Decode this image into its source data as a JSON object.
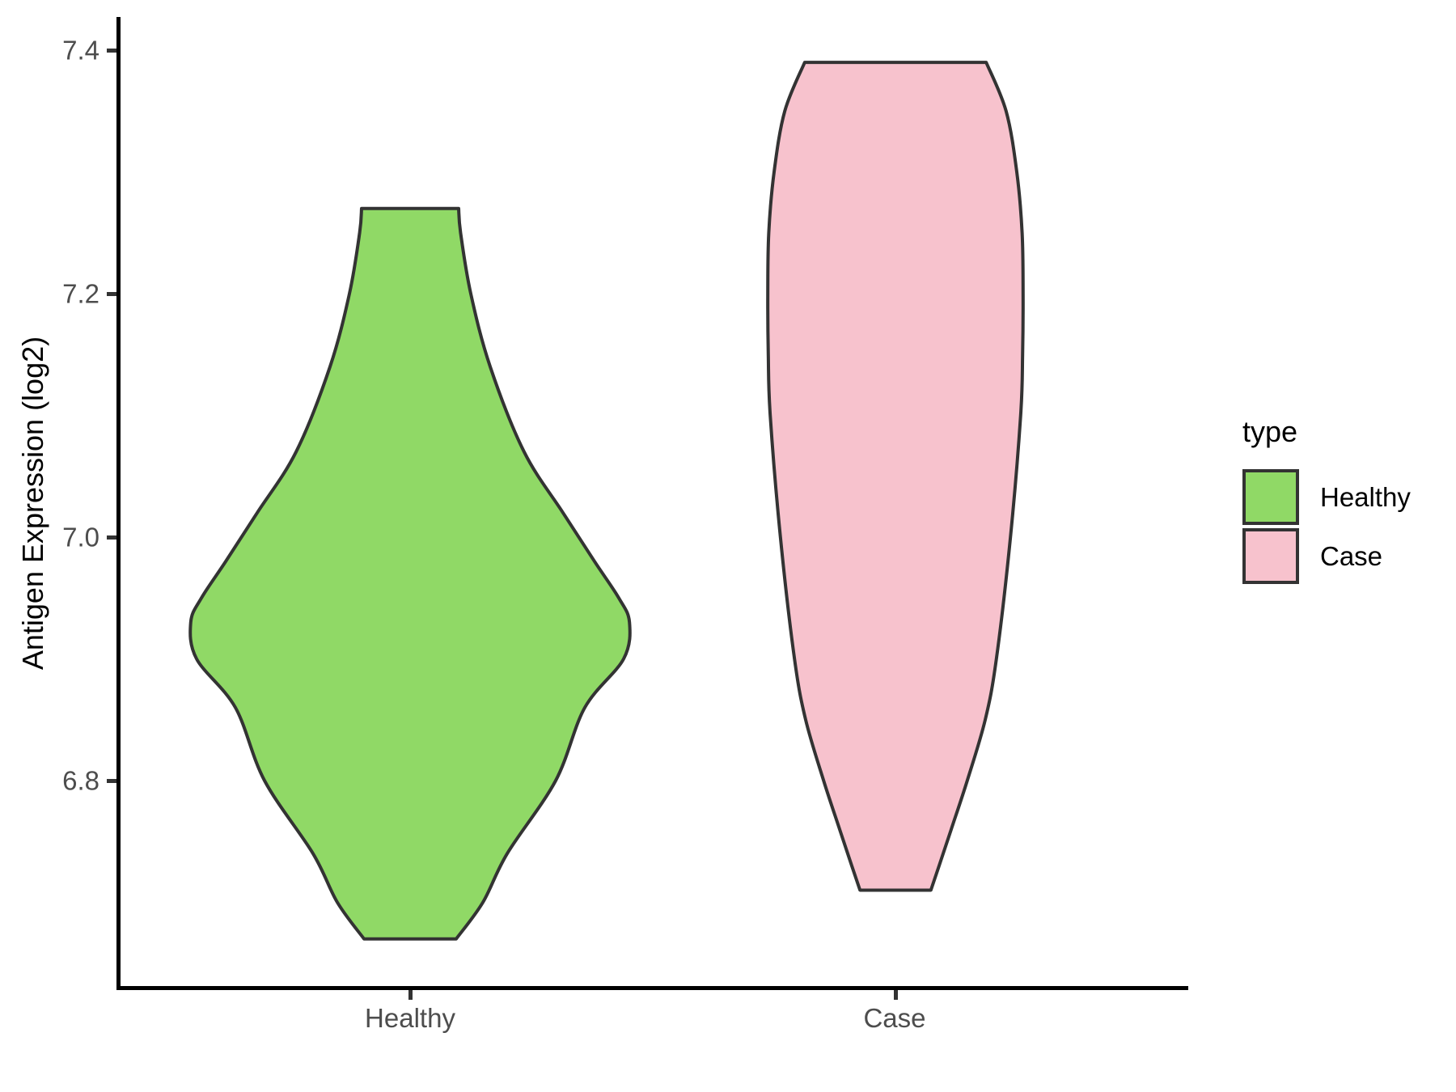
{
  "chart": {
    "y_axis": {
      "title": "Antigen Expression (log2)",
      "ticks": [
        "7.4",
        "7.2",
        "7.0",
        "6.8"
      ]
    },
    "x_axis": {
      "labels": [
        "Healthy",
        "Case"
      ]
    },
    "legend": {
      "title": "type",
      "items": [
        {
          "label": "Healthy",
          "color": "#90D966"
        },
        {
          "label": "Case",
          "color": "#F7C2CD"
        }
      ]
    }
  },
  "chart_data": {
    "type": "violin",
    "title": "",
    "xlabel": "",
    "ylabel": "Antigen Expression (log2)",
    "categories": [
      "Healthy",
      "Case"
    ],
    "y_ticks": [
      6.8,
      7.0,
      7.2,
      7.4
    ],
    "ylim": [
      6.63,
      7.43
    ],
    "legend_position": "right",
    "legend_title": "type",
    "outline_color": "#333333",
    "series": [
      {
        "name": "Healthy",
        "fill": "#90D966",
        "y_min": 6.67,
        "y_max": 7.27,
        "widest_at": 6.93,
        "profile": [
          [
            7.27,
            0.1
          ],
          [
            7.25,
            0.104
          ],
          [
            7.2,
            0.125
          ],
          [
            7.14,
            0.165
          ],
          [
            7.07,
            0.235
          ],
          [
            7.02,
            0.315
          ],
          [
            6.98,
            0.38
          ],
          [
            6.95,
            0.43
          ],
          [
            6.93,
            0.452
          ],
          [
            6.9,
            0.44
          ],
          [
            6.86,
            0.36
          ],
          [
            6.8,
            0.3
          ],
          [
            6.74,
            0.2
          ],
          [
            6.7,
            0.15
          ],
          [
            6.67,
            0.095
          ]
        ]
      },
      {
        "name": "Case",
        "fill": "#F7C2CD",
        "y_min": 6.71,
        "y_max": 7.39,
        "widest_at": 7.2,
        "profile": [
          [
            7.39,
            0.187
          ],
          [
            7.35,
            0.228
          ],
          [
            7.3,
            0.25
          ],
          [
            7.25,
            0.261
          ],
          [
            7.2,
            0.263
          ],
          [
            7.15,
            0.262
          ],
          [
            7.1,
            0.258
          ],
          [
            7.0,
            0.237
          ],
          [
            6.9,
            0.208
          ],
          [
            6.85,
            0.185
          ],
          [
            6.8,
            0.148
          ],
          [
            6.76,
            0.115
          ],
          [
            6.73,
            0.09
          ],
          [
            6.71,
            0.073
          ]
        ]
      }
    ]
  }
}
